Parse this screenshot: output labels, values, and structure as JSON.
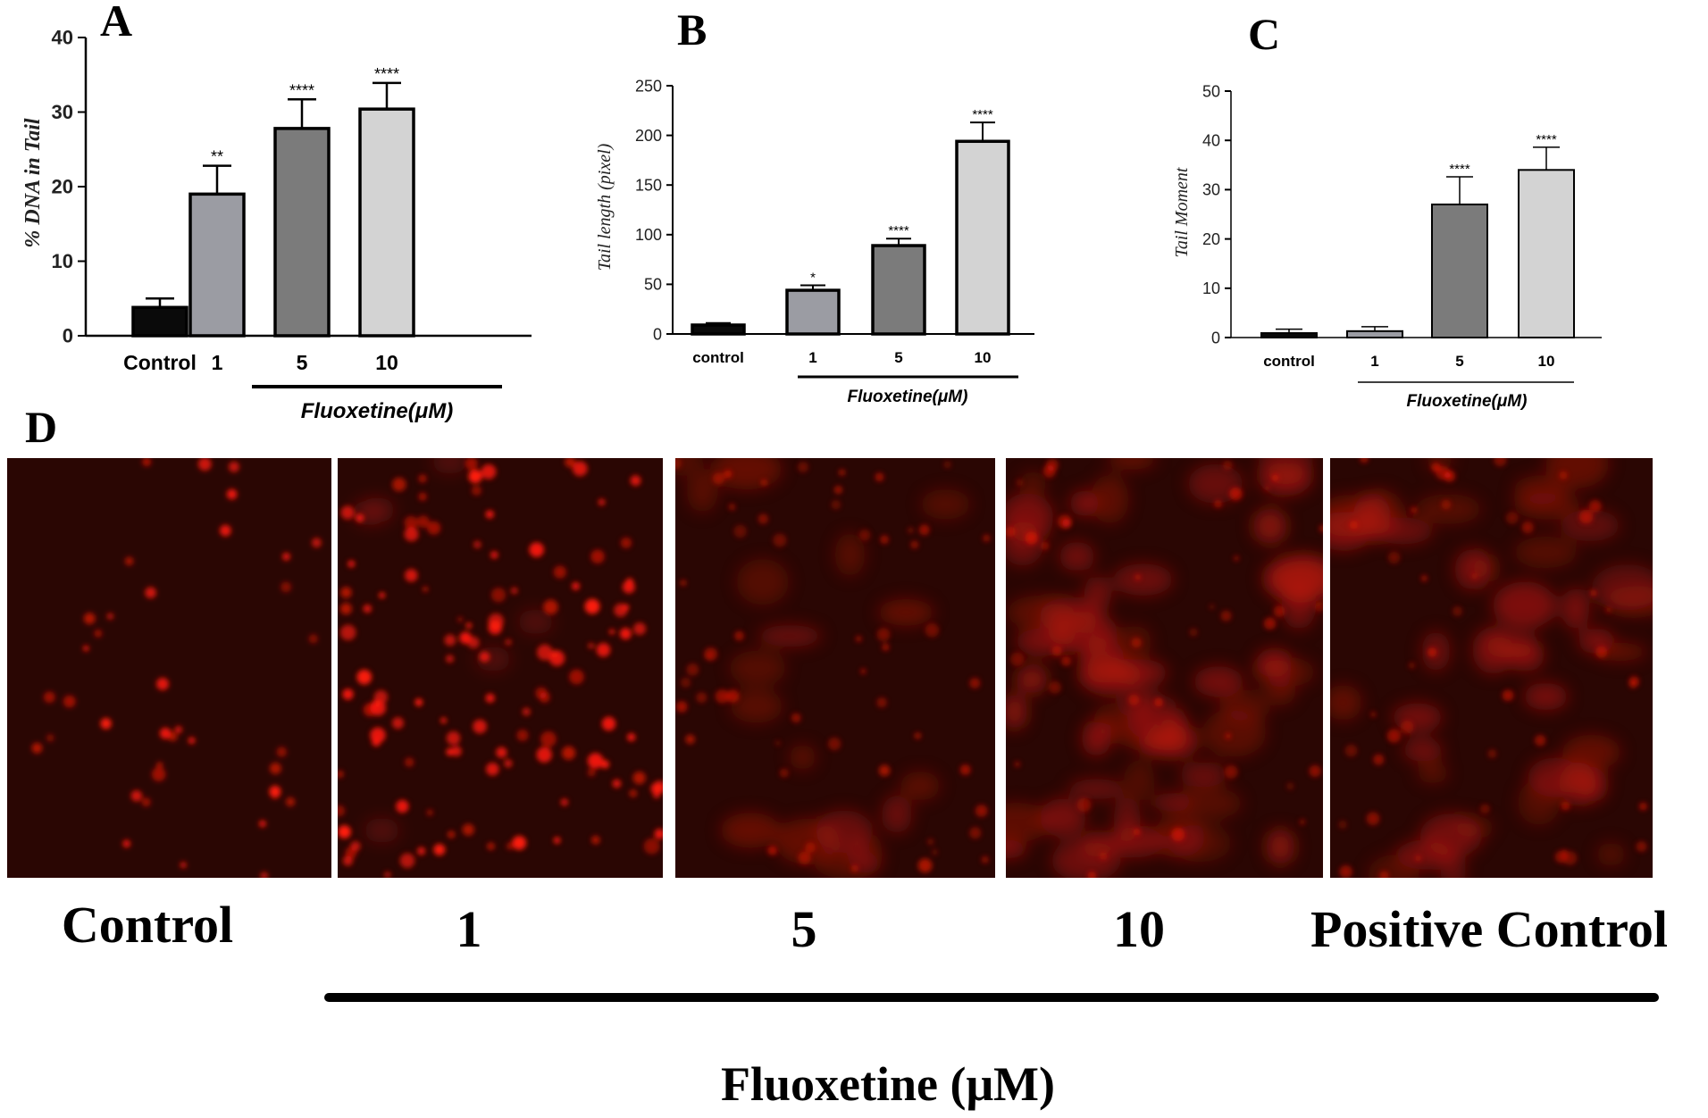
{
  "charts": [
    {
      "panel_letter": "A",
      "type": "bar",
      "ylabel": "% DNA in Tail",
      "group_label": "Fluoxetine(μM)",
      "y_ticks": [
        "0",
        "10",
        "20",
        "30",
        "40"
      ],
      "ylim": [
        0,
        40
      ],
      "categories": [
        "Control",
        "1",
        "5",
        "10"
      ],
      "values": [
        3.8,
        19.0,
        27.8,
        30.4
      ],
      "errors": [
        1.2,
        3.8,
        3.9,
        3.5
      ],
      "significance": [
        "",
        "**",
        "****",
        "****"
      ],
      "colors": [
        "#0a0a0a",
        "#9b9ca3",
        "#7b7b7b",
        "#d3d3d3"
      ]
    },
    {
      "panel_letter": "B",
      "type": "bar",
      "ylabel": "Tail length (pixel)",
      "group_label": "Fluoxetine(μM)",
      "y_ticks": [
        "0",
        "50",
        "100",
        "150",
        "200",
        "250"
      ],
      "ylim": [
        0,
        250
      ],
      "categories": [
        "control",
        "1",
        "5",
        "10"
      ],
      "values": [
        9,
        44,
        89,
        194
      ],
      "errors": [
        2,
        5,
        7,
        19
      ],
      "significance": [
        "",
        "*",
        "****",
        "****"
      ],
      "colors": [
        "#0a0a0a",
        "#9b9ca3",
        "#7b7b7b",
        "#d3d3d3"
      ]
    },
    {
      "panel_letter": "C",
      "type": "bar",
      "ylabel": "Tail Moment",
      "group_label": "Fluoxetine(μM)",
      "y_ticks": [
        "0",
        "10",
        "20",
        "30",
        "40",
        "50"
      ],
      "ylim": [
        0,
        50
      ],
      "categories": [
        "control",
        "1",
        "5",
        "10"
      ],
      "values": [
        0.9,
        1.3,
        27.0,
        34.0
      ],
      "errors": [
        0.8,
        0.9,
        5.6,
        4.6
      ],
      "significance": [
        "",
        "",
        "****",
        "****"
      ],
      "colors": [
        "#0a0a0a",
        "#9b9ca3",
        "#7b7b7b",
        "#d3d3d3"
      ]
    }
  ],
  "panel_d": {
    "letter": "D",
    "image_labels": [
      "Control",
      "1",
      "5",
      "10",
      "Positive Control"
    ],
    "group_label": "Fluoxetine (μM)",
    "background_color": "#2a0603",
    "spot_color": "#ff1a0a"
  }
}
